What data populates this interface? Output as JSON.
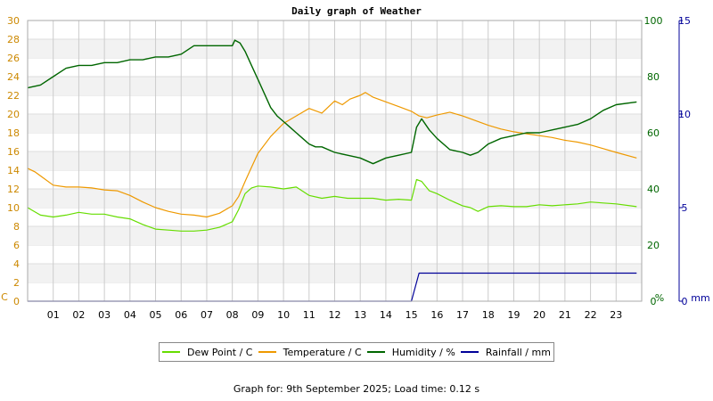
{
  "chart_data": {
    "type": "line",
    "title": "Daily graph of Weather",
    "x_ticks": [
      "01",
      "02",
      "03",
      "04",
      "05",
      "06",
      "07",
      "08",
      "09",
      "10",
      "11",
      "12",
      "13",
      "14",
      "15",
      "16",
      "17",
      "18",
      "19",
      "20",
      "21",
      "22",
      "23"
    ],
    "xlim": [
      0,
      24
    ],
    "axes": {
      "left": {
        "label": "C",
        "ticks": [
          "0",
          "2",
          "4",
          "6",
          "8",
          "10",
          "12",
          "14",
          "16",
          "18",
          "20",
          "22",
          "24",
          "26",
          "28",
          "30"
        ],
        "range": [
          0,
          30
        ],
        "color": "#cc8800"
      },
      "right1": {
        "label": "%",
        "ticks": [
          "0",
          "20",
          "40",
          "60",
          "80",
          "100"
        ],
        "range": [
          0,
          100
        ],
        "color": "#006600"
      },
      "right2": {
        "label": "mm",
        "ticks": [
          "0",
          "5",
          "10",
          "15"
        ],
        "range": [
          0,
          15
        ],
        "color": "#000099"
      }
    },
    "grid": true,
    "legend_position": "bottom",
    "series": [
      {
        "name": "Dew Point / C",
        "color": "#66dd00",
        "axis": "left",
        "x": [
          0,
          0.5,
          1,
          1.5,
          2,
          2.5,
          3,
          3.5,
          4,
          4.5,
          5,
          5.5,
          6,
          6.5,
          7,
          7.5,
          8,
          8.25,
          8.5,
          8.75,
          9,
          9.5,
          10,
          10.5,
          11,
          11.5,
          12,
          12.5,
          13,
          13.5,
          14,
          14.5,
          15,
          15.2,
          15.4,
          15.7,
          16,
          16.5,
          17,
          17.3,
          17.6,
          18,
          18.5,
          19,
          19.5,
          20,
          20.5,
          21,
          21.5,
          22,
          22.5,
          23,
          23.8
        ],
        "y": [
          10,
          9.2,
          9,
          9.2,
          9.5,
          9.3,
          9.3,
          9,
          8.8,
          8.2,
          7.7,
          7.6,
          7.5,
          7.5,
          7.6,
          7.9,
          8.5,
          9.8,
          11.5,
          12.1,
          12.3,
          12.2,
          12,
          12.2,
          11.3,
          11,
          11.2,
          11,
          11,
          11,
          10.8,
          10.9,
          10.8,
          13,
          12.8,
          11.8,
          11.5,
          10.8,
          10.2,
          10,
          9.6,
          10.1,
          10.2,
          10.1,
          10.1,
          10.3,
          10.2,
          10.3,
          10.4,
          10.6,
          10.5,
          10.4,
          10.1
        ]
      },
      {
        "name": "Temperature / C",
        "color": "#ee9900",
        "axis": "left",
        "x": [
          0,
          0.3,
          0.6,
          1,
          1.5,
          2,
          2.5,
          3,
          3.5,
          4,
          4.5,
          5,
          5.5,
          6,
          6.5,
          7,
          7.5,
          8,
          8.25,
          8.5,
          8.75,
          9,
          9.5,
          10,
          10.5,
          11,
          11.5,
          12,
          12.3,
          12.6,
          13,
          13.2,
          13.5,
          14,
          14.5,
          15,
          15.3,
          15.6,
          16,
          16.5,
          17,
          17.5,
          18,
          18.5,
          19,
          19.5,
          20,
          20.5,
          21,
          21.5,
          22,
          22.5,
          23,
          23.8
        ],
        "y": [
          14.2,
          13.8,
          13.2,
          12.4,
          12.2,
          12.2,
          12.1,
          11.9,
          11.8,
          11.3,
          10.6,
          10,
          9.6,
          9.3,
          9.2,
          9,
          9.4,
          10.2,
          11.2,
          12.8,
          14.3,
          15.8,
          17.6,
          19,
          19.8,
          20.6,
          20.1,
          21.4,
          21,
          21.6,
          22,
          22.3,
          21.8,
          21.3,
          20.8,
          20.3,
          19.8,
          19.6,
          19.9,
          20.2,
          19.8,
          19.3,
          18.8,
          18.4,
          18.1,
          17.9,
          17.7,
          17.5,
          17.2,
          17,
          16.7,
          16.3,
          15.9,
          15.3
        ]
      },
      {
        "name": "Humidity / %",
        "color": "#006600",
        "axis": "right1",
        "x": [
          0,
          0.5,
          1,
          1.5,
          2,
          2.5,
          3,
          3.5,
          4,
          4.5,
          5,
          5.5,
          6,
          6.5,
          7,
          7.5,
          8,
          8.1,
          8.3,
          8.5,
          8.75,
          9,
          9.25,
          9.5,
          9.75,
          10,
          10.25,
          10.5,
          10.75,
          11,
          11.25,
          11.5,
          12,
          12.5,
          13,
          13.5,
          14,
          14.5,
          15,
          15.2,
          15.4,
          15.7,
          16,
          16.5,
          17,
          17.3,
          17.6,
          18,
          18.5,
          19,
          19.5,
          20,
          20.5,
          21,
          21.5,
          22,
          22.5,
          23,
          23.8
        ],
        "y": [
          76,
          77,
          80,
          83,
          84,
          84,
          85,
          85,
          86,
          86,
          87,
          87,
          88,
          91,
          91,
          91,
          91,
          93,
          92,
          89,
          84,
          79,
          74,
          69,
          66,
          64,
          62,
          60,
          58,
          56,
          55,
          55,
          53,
          52,
          51,
          49,
          51,
          52,
          53,
          62,
          65,
          61,
          58,
          54,
          53,
          52,
          53,
          56,
          58,
          59,
          60,
          60,
          61,
          62,
          63,
          65,
          68,
          70,
          71
        ]
      },
      {
        "name": "Rainfall / mm",
        "color": "#000099",
        "axis": "right2",
        "x": [
          0,
          15,
          15.3,
          23.8
        ],
        "y": [
          0,
          0,
          1.5,
          1.5
        ]
      }
    ]
  },
  "footer": "Graph for: 9th September 2025; Load time: 0.12 s"
}
